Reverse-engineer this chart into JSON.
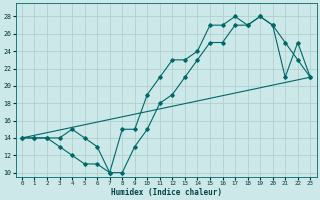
{
  "xlabel": "Humidex (Indice chaleur)",
  "bg_color": "#cce8e8",
  "grid_color": "#b0d0d0",
  "line_color": "#006868",
  "xlim": [
    -0.5,
    23.5
  ],
  "ylim": [
    9.5,
    29.5
  ],
  "xticks": [
    0,
    1,
    2,
    3,
    4,
    5,
    6,
    7,
    8,
    9,
    10,
    11,
    12,
    13,
    14,
    15,
    16,
    17,
    18,
    19,
    20,
    21,
    22,
    23
  ],
  "yticks": [
    10,
    12,
    14,
    16,
    18,
    20,
    22,
    24,
    26,
    28
  ],
  "line1_x": [
    0,
    1,
    2,
    3,
    4,
    5,
    6,
    7,
    8,
    9,
    10,
    11,
    12,
    13,
    14,
    15,
    16,
    17,
    18,
    19,
    20,
    21,
    22,
    23
  ],
  "line1_y": [
    14,
    14,
    14,
    14,
    15,
    14,
    13,
    10,
    10,
    13,
    15,
    18,
    19,
    21,
    23,
    25,
    25,
    27,
    27,
    28,
    27,
    21,
    25,
    21
  ],
  "line2_x": [
    0,
    1,
    2,
    3,
    4,
    5,
    6,
    7,
    8,
    9,
    10,
    11,
    12,
    13,
    14,
    15,
    16,
    17,
    18,
    19,
    20,
    21,
    22,
    23
  ],
  "line2_y": [
    14,
    14,
    14,
    13,
    12,
    11,
    11,
    10,
    15,
    15,
    19,
    21,
    23,
    23,
    24,
    27,
    27,
    28,
    27,
    28,
    27,
    25,
    23,
    21
  ],
  "line3_x": [
    0,
    23
  ],
  "line3_y": [
    14,
    21
  ],
  "marker_size": 1.8,
  "line_width": 0.8
}
